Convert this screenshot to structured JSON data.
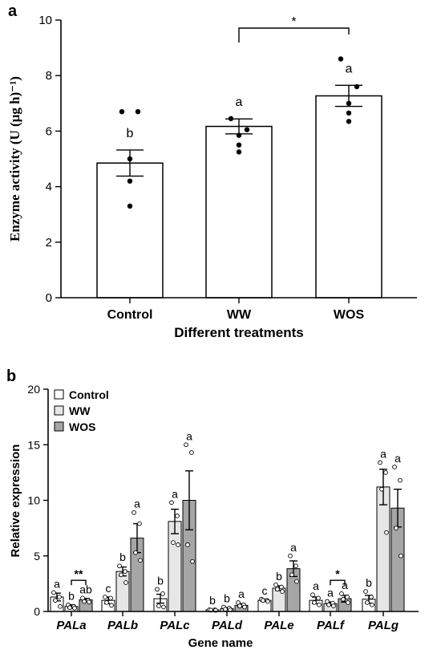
{
  "chart_data": [
    {
      "type": "bar",
      "panel_label": "a",
      "xlabel": "Different treatments",
      "ylabel": "Enzyme activity (U (μg h)⁻¹)",
      "ylim": [
        0,
        10
      ],
      "yticks": [
        "0",
        "2",
        "4",
        "6",
        "8",
        "10"
      ],
      "categories": [
        "Control",
        "WW",
        "WOS"
      ],
      "values": [
        4.85,
        6.17,
        7.27
      ],
      "errors": [
        0.47,
        0.27,
        0.38
      ],
      "points": [
        [
          6.7,
          6.7,
          5.0,
          4.2,
          3.3
        ],
        [
          6.45,
          6.05,
          5.85,
          5.5,
          5.25
        ],
        [
          8.6,
          7.6,
          7.0,
          6.65,
          6.35
        ]
      ],
      "letters": [
        "b",
        "a",
        "a"
      ],
      "significance": {
        "from": "WW",
        "to": "WOS",
        "label": "*"
      },
      "grid": false,
      "bar_color": "#ffffff"
    },
    {
      "type": "bar",
      "panel_label": "b",
      "xlabel": "Gene name",
      "ylabel": "Relative expression",
      "ylim": [
        0,
        20
      ],
      "yticks": [
        "0",
        "5",
        "10",
        "15",
        "20"
      ],
      "categories": [
        "PALa",
        "PALb",
        "PALc",
        "PALd",
        "PALe",
        "PALf",
        "PALg"
      ],
      "legend_position": "top-left",
      "grid": false,
      "series": [
        {
          "name": "Control",
          "color": "#ffffff",
          "values": [
            1.3,
            1.0,
            1.15,
            0.15,
            1.0,
            1.0,
            1.1
          ],
          "errors": [
            0.35,
            0.3,
            0.4,
            0.05,
            0.1,
            0.3,
            0.35
          ],
          "letters": [
            "a",
            "c",
            "b",
            "b",
            "c",
            "a",
            "b"
          ],
          "points": [
            [
              1.7,
              1.3,
              1.0,
              0.45
            ],
            [
              1.3,
              1.2,
              0.8,
              0.55
            ],
            [
              2.0,
              1.6,
              0.5,
              0.4
            ],
            [
              0.15,
              0.15,
              0.12,
              0.1
            ],
            [
              1.1,
              1.0,
              1.0,
              0.9
            ],
            [
              1.5,
              1.2,
              0.8,
              0.6
            ],
            [
              1.8,
              1.3,
              0.8,
              0.6
            ]
          ]
        },
        {
          "name": "WW",
          "color": "#e6e6e6",
          "values": [
            0.45,
            3.6,
            8.1,
            0.25,
            2.1,
            0.7,
            11.2
          ],
          "errors": [
            0.15,
            0.4,
            1.1,
            0.1,
            0.2,
            0.15,
            1.6
          ],
          "letters": [
            "b",
            "b",
            "a",
            "b",
            "b",
            "a",
            "a"
          ],
          "points": [
            [
              0.6,
              0.45,
              0.35,
              0.3
            ],
            [
              4.1,
              3.6,
              3.3,
              2.6
            ],
            [
              9.8,
              8.6,
              6.2,
              6.0
            ],
            [
              0.4,
              0.3,
              0.2,
              0.15
            ],
            [
              2.4,
              2.2,
              2.0,
              1.8
            ],
            [
              0.9,
              0.75,
              0.6,
              0.5
            ],
            [
              13.4,
              12.5,
              11.0,
              7.1
            ]
          ]
        },
        {
          "name": "WOS",
          "color": "#a6a6a6",
          "values": [
            1.05,
            6.6,
            10.0,
            0.55,
            3.85,
            1.15,
            9.3
          ],
          "errors": [
            0.12,
            1.3,
            2.65,
            0.15,
            0.7,
            0.3,
            1.7
          ],
          "letters": [
            "ab",
            "a",
            "a",
            "a",
            "a",
            "a",
            "a"
          ],
          "points": [
            [
              1.2,
              1.0,
              0.9,
              0.85
            ],
            [
              8.9,
              7.9,
              5.3,
              4.6
            ],
            [
              15.0,
              14.3,
              6.0,
              4.5
            ],
            [
              0.8,
              0.6,
              0.5,
              0.4
            ],
            [
              5.0,
              4.1,
              3.3,
              2.7
            ],
            [
              1.6,
              1.3,
              1.1,
              0.8
            ],
            [
              13.0,
              11.8,
              7.5,
              5.0
            ]
          ]
        }
      ],
      "significance": [
        {
          "category": "PALa",
          "from": "WW",
          "to": "WOS",
          "label": "**"
        },
        {
          "category": "PALf",
          "from": "WW",
          "to": "WOS",
          "label": "*"
        }
      ]
    }
  ]
}
